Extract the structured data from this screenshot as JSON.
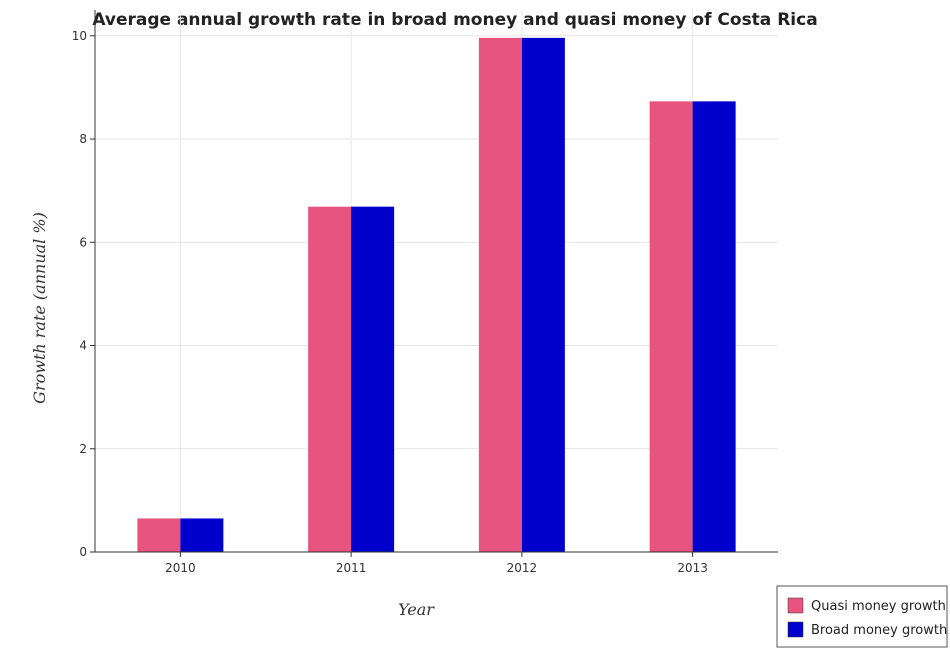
{
  "chart_data": {
    "type": "bar",
    "title": "Average annual growth rate in broad money and quasi money of Costa Rica",
    "xlabel": "Year",
    "ylabel": "Growth rate (annual %)",
    "categories": [
      "2010",
      "2011",
      "2012",
      "2013"
    ],
    "series": [
      {
        "name": "Quasi money growth",
        "color": "#e75480",
        "values": [
          0.65,
          6.69,
          9.96,
          8.73
        ]
      },
      {
        "name": "Broad money growth",
        "color": "#0000cd",
        "values": [
          0.65,
          6.69,
          9.96,
          8.73
        ]
      }
    ],
    "ylim": [
      0,
      10.5
    ],
    "yticks": [
      0,
      2,
      4,
      6,
      8,
      10
    ],
    "grid": true,
    "legend_position": "bottom-right"
  }
}
